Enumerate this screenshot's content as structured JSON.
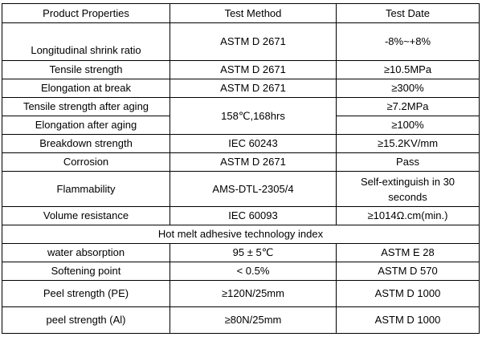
{
  "header": {
    "col1": "Product Properties",
    "col2": "Test Method",
    "col3": "Test Date"
  },
  "rows": {
    "longitudinal": {
      "property": "Longitudinal shrink ratio",
      "method": "ASTM D 2671",
      "value": "-8%~+8%"
    },
    "tensile": {
      "property": "Tensile strength",
      "method": "ASTM D 2671",
      "value": "≥10.5MPa"
    },
    "elongation": {
      "property": "Elongation at break",
      "method": "ASTM D 2671",
      "value": "≥300%"
    },
    "tensile_aging": {
      "property": "Tensile strength after aging",
      "value": "≥7.2MPa"
    },
    "aging_method": "158℃,168hrs",
    "elongation_aging": {
      "property": "Elongation after aging",
      "value": "≥100%"
    },
    "breakdown": {
      "property": "Breakdown strength",
      "method": "IEC 60243",
      "value": "≥15.2KV/mm"
    },
    "corrosion": {
      "property": "Corrosion",
      "method": "ASTM D 2671",
      "value": "Pass"
    },
    "flammability": {
      "property": "Flammability",
      "method": "AMS-DTL-2305/4",
      "value": "Self-extinguish in 30 seconds"
    },
    "volume_resistance": {
      "property": "Volume resistance",
      "method": "IEC 60093",
      "value": "≥1014Ω.cm(min.)"
    }
  },
  "section_title": "Hot melt adhesive technology index",
  "adhesive_rows": {
    "water_absorption": {
      "property": "water absorption",
      "value": "95 ± 5℃",
      "method": "ASTM E 28"
    },
    "softening_point": {
      "property": "Softening point",
      "value": "< 0.5%",
      "method": "ASTM D 570"
    },
    "peel_pe": {
      "property": "Peel strength (PE)",
      "value": "≥120N/25mm",
      "method": "ASTM D 1000"
    },
    "peel_al": {
      "property": "peel strength (Al)",
      "value": "≥80N/25mm",
      "method": "ASTM D 1000"
    }
  }
}
